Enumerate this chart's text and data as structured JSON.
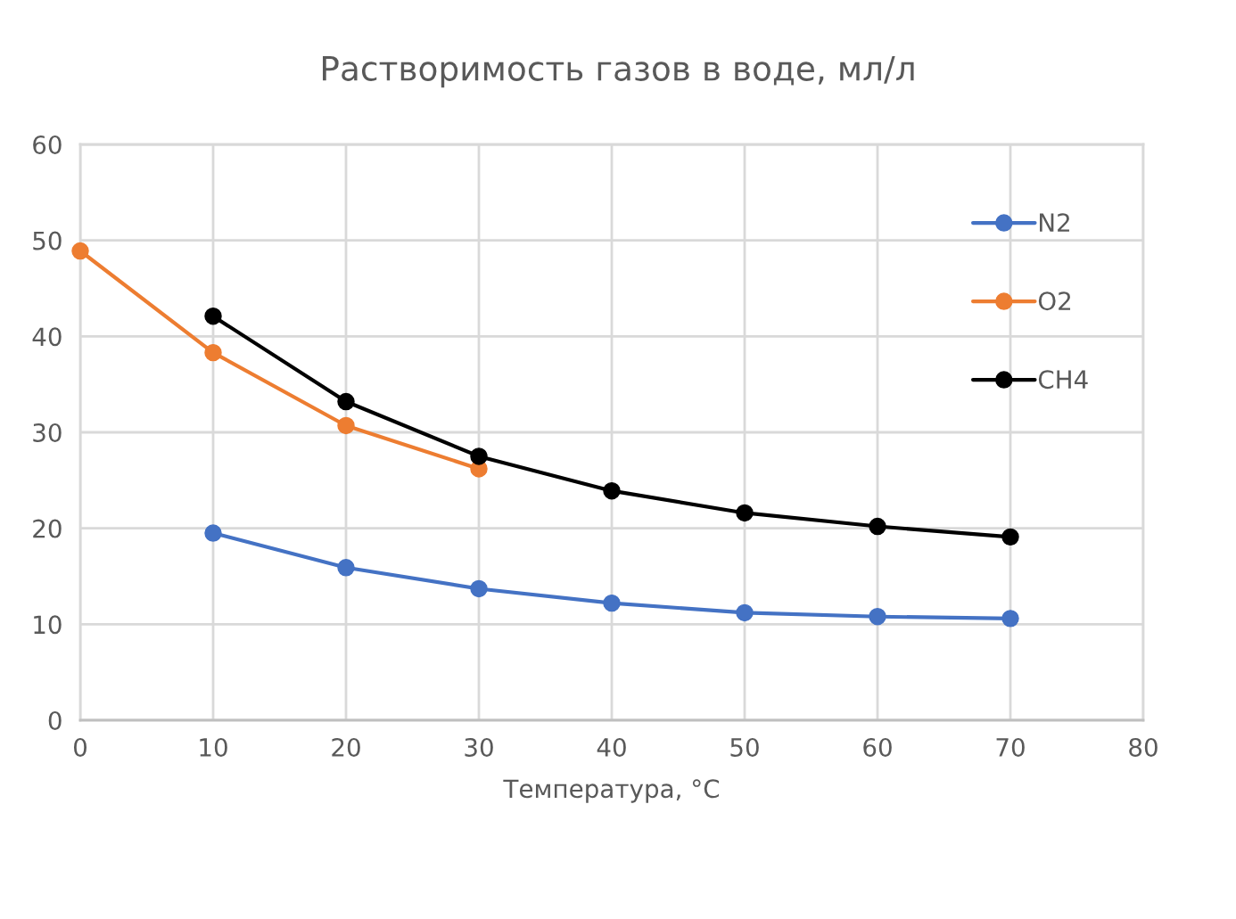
{
  "chart_data": {
    "type": "line",
    "title": "Растворимость газов в воде, мл/л",
    "xlabel": "Температура, °C",
    "xlim": [
      0,
      80
    ],
    "xticks": [
      0,
      10,
      20,
      30,
      40,
      50,
      60,
      70,
      80
    ],
    "ylim": [
      0,
      60
    ],
    "yticks": [
      0,
      10,
      20,
      30,
      40,
      50,
      60
    ],
    "grid": true,
    "legend": "upper right",
    "marker": "circle",
    "line_style": "solid",
    "series": [
      {
        "name": "N2",
        "color": "#4472c4",
        "x": [
          10,
          20,
          30,
          40,
          50,
          60,
          70
        ],
        "values": [
          19.5,
          15.9,
          13.7,
          12.2,
          11.2,
          10.8,
          10.6
        ]
      },
      {
        "name": "O2",
        "color": "#ed7d31",
        "x": [
          0,
          10,
          20,
          30
        ],
        "values": [
          48.9,
          38.3,
          30.7,
          26.2
        ]
      },
      {
        "name": "CH4",
        "color": "#000000",
        "x": [
          10,
          20,
          30,
          40,
          50,
          60,
          70
        ],
        "values": [
          42.1,
          33.2,
          27.5,
          23.9,
          21.6,
          20.2,
          19.1
        ]
      }
    ]
  }
}
